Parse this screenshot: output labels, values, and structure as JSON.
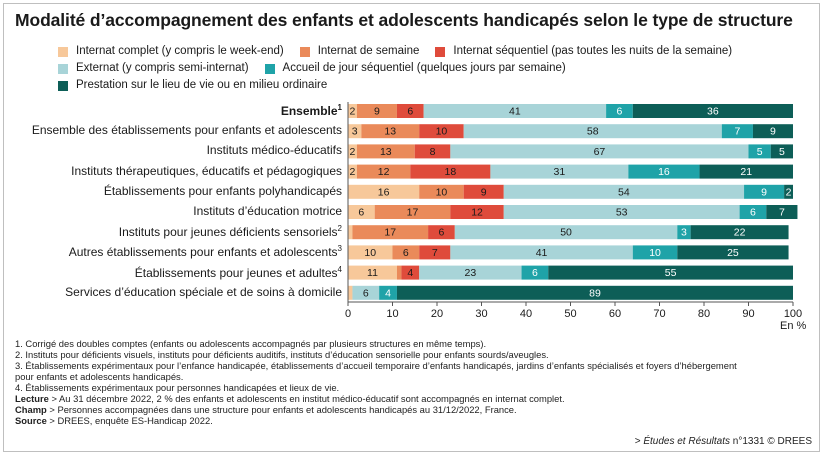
{
  "chart_data": {
    "type": "bar",
    "stacked": "horizontal",
    "title": "Modalité d’accompagnement des enfants et adolescents handicapés selon le type de structure",
    "xlim": [
      0,
      100
    ],
    "xticks": [
      "0",
      "10",
      "20",
      "30",
      "40",
      "50",
      "60",
      "70",
      "80",
      "90",
      "100"
    ],
    "xlabel": "En %",
    "series": [
      {
        "name": "Internat complet (y compris le week-end)",
        "color": "#f7c89a"
      },
      {
        "name": "Internat de semaine",
        "color": "#ea8a5a"
      },
      {
        "name": "Internat séquentiel (pas toutes les nuits de la semaine)",
        "color": "#df4b3b"
      },
      {
        "name": "Externat (y compris semi-internat)",
        "color": "#a8d4d8"
      },
      {
        "name": "Accueil de jour séquentiel (quelques jours par semaine)",
        "color": "#1fa3a8"
      },
      {
        "name": "Prestation sur le lieu de vie ou en milieu ordinaire",
        "color": "#0d5e57"
      }
    ],
    "categories": [
      {
        "label": "Ensemble",
        "sup": "1",
        "bold": true,
        "values": [
          2,
          9,
          6,
          41,
          6,
          36
        ]
      },
      {
        "label": "Ensemble des établissements pour enfants et adolescents",
        "sup": "",
        "bold": false,
        "values": [
          3,
          13,
          10,
          58,
          7,
          9
        ]
      },
      {
        "label": "Instituts médico-éducatifs",
        "sup": "",
        "bold": false,
        "values": [
          2,
          13,
          8,
          67,
          5,
          5
        ]
      },
      {
        "label": "Instituts thérapeutiques, éducatifs et pédagogiques",
        "sup": "",
        "bold": false,
        "values": [
          2,
          12,
          18,
          31,
          16,
          21
        ]
      },
      {
        "label": "Établissements pour enfants polyhandicapés",
        "sup": "",
        "bold": false,
        "values": [
          16,
          10,
          9,
          54,
          9,
          2
        ]
      },
      {
        "label": "Instituts d’éducation motrice",
        "sup": "",
        "bold": false,
        "values": [
          6,
          17,
          12,
          53,
          6,
          7
        ]
      },
      {
        "label": "Instituts pour jeunes déficients sensoriels",
        "sup": "2",
        "bold": false,
        "values": [
          1,
          17,
          6,
          50,
          3,
          22
        ]
      },
      {
        "label": "Autres établissements pour enfants et adolescents",
        "sup": "3",
        "bold": false,
        "values": [
          10,
          6,
          7,
          41,
          10,
          25
        ]
      },
      {
        "label": "Établissements pour jeunes et adultes",
        "sup": "4",
        "bold": false,
        "values": [
          11,
          1,
          4,
          23,
          6,
          55
        ]
      },
      {
        "label": "Services d’éducation spéciale et de soins à domicile",
        "sup": "",
        "bold": false,
        "values": [
          1,
          0,
          0,
          6,
          4,
          89
        ]
      }
    ]
  },
  "notes": {
    "n1": "1. Corrigé des doubles comptes (enfants ou adolescents accompagnés par plusieurs structures en même temps).",
    "n2": "2. Instituts pour déficients visuels, instituts pour déficients auditifs, instituts d’éducation sensorielle pour enfants sourds/aveugles.",
    "n3a": "3. Établissements expérimentaux pour l’enfance handicapée, établissements d’accueil temporaire d’enfants handicapés, jardins d’enfants spécialisés et foyers d’hébergement",
    "n3b": "pour enfants et adolescents handicapés.",
    "n4": "4. Établissements expérimentaux pour personnes handicapées et lieux de vie.",
    "lecture_label": "Lecture",
    "lecture": " > Au 31 décembre 2022, 2 % des enfants et adolescents en institut médico-éducatif sont accompagnés en internat complet.",
    "champ_label": "Champ",
    "champ": " > Personnes accompagnées dans une structure pour enfants et adolescents handicapés au 31/12/2022, France.",
    "source_label": "Source",
    "source": " > DREES, enquête ES-Handicap 2022."
  },
  "credit": {
    "prefix": "> ",
    "publication": "Études et Résultats",
    "suffix": " n°1331 © DREES"
  }
}
